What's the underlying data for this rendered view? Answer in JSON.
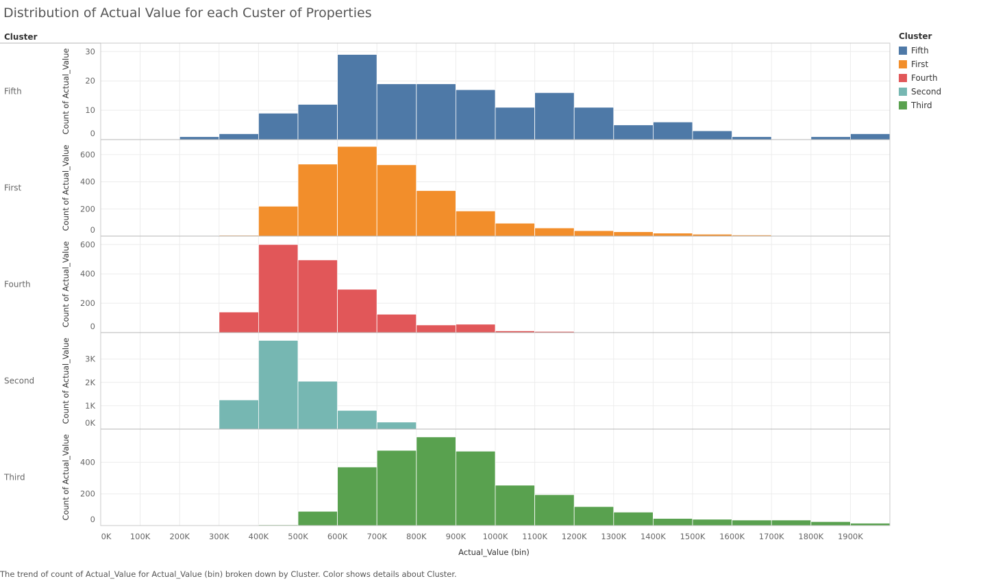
{
  "title": "Distribution of Actual Value for each Custer of Properties",
  "caption": "The trend of count of Actual_Value for Actual_Value (bin) broken down by Cluster.  Color shows details about Cluster.",
  "chart_data": {
    "type": "bar",
    "row_header": "Cluster",
    "xlabel": "Actual_Value (bin)",
    "ylabel": "Count of Actual_Value",
    "x_tick_labels": [
      "0K",
      "100K",
      "200K",
      "300K",
      "400K",
      "500K",
      "600K",
      "700K",
      "800K",
      "900K",
      "1000K",
      "1100K",
      "1200K",
      "1300K",
      "1400K",
      "1500K",
      "1600K",
      "1700K",
      "1800K",
      "1900K"
    ],
    "legend": {
      "title": "Cluster",
      "position": "right",
      "items": [
        {
          "name": "Fifth",
          "color": "#4e79a7"
        },
        {
          "name": "First",
          "color": "#f28e2b"
        },
        {
          "name": "Fourth",
          "color": "#e15759"
        },
        {
          "name": "Second",
          "color": "#76b7b2"
        },
        {
          "name": "Third",
          "color": "#59a14f"
        }
      ]
    },
    "series": [
      {
        "name": "Fifth",
        "color": "#4e79a7",
        "ylim": [
          0,
          31
        ],
        "yticks": [
          0,
          10,
          20,
          30
        ],
        "ytick_labels": [
          "0",
          "10",
          "20",
          "30"
        ],
        "values": [
          0,
          0,
          1,
          2,
          9,
          12,
          29,
          19,
          19,
          17,
          11,
          16,
          11,
          5,
          6,
          3,
          1,
          0,
          1,
          2
        ]
      },
      {
        "name": "First",
        "color": "#f28e2b",
        "ylim": [
          0,
          670
        ],
        "yticks": [
          0,
          200,
          400,
          600
        ],
        "ytick_labels": [
          "0",
          "200",
          "400",
          "600"
        ],
        "values": [
          0,
          0,
          2,
          6,
          220,
          530,
          660,
          525,
          335,
          185,
          95,
          60,
          40,
          32,
          22,
          14,
          8,
          3,
          0,
          0
        ]
      },
      {
        "name": "Fourth",
        "color": "#e15759",
        "ylim": [
          0,
          620
        ],
        "yticks": [
          0,
          200,
          400,
          600
        ],
        "ytick_labels": [
          "0",
          "200",
          "400",
          "600"
        ],
        "values": [
          0,
          0,
          3,
          140,
          600,
          495,
          295,
          125,
          52,
          57,
          12,
          8,
          0,
          0,
          0,
          0,
          0,
          0,
          0,
          0
        ]
      },
      {
        "name": "Second",
        "color": "#76b7b2",
        "ylim": [
          0,
          3900
        ],
        "yticks": [
          0,
          1000,
          2000,
          3000
        ],
        "ytick_labels": [
          "0K",
          "1K",
          "2K",
          "3K"
        ],
        "values": [
          0,
          0,
          15,
          1250,
          3800,
          2050,
          800,
          300,
          20,
          0,
          0,
          0,
          0,
          0,
          0,
          0,
          0,
          0,
          0,
          0
        ]
      },
      {
        "name": "Third",
        "color": "#59a14f",
        "ylim": [
          0,
          575
        ],
        "yticks": [
          0,
          200,
          400
        ],
        "ytick_labels": [
          "0",
          "200",
          "400"
        ],
        "values": [
          0,
          0,
          0,
          0,
          5,
          90,
          370,
          475,
          560,
          470,
          255,
          195,
          120,
          85,
          45,
          40,
          35,
          35,
          25,
          15
        ]
      }
    ]
  }
}
